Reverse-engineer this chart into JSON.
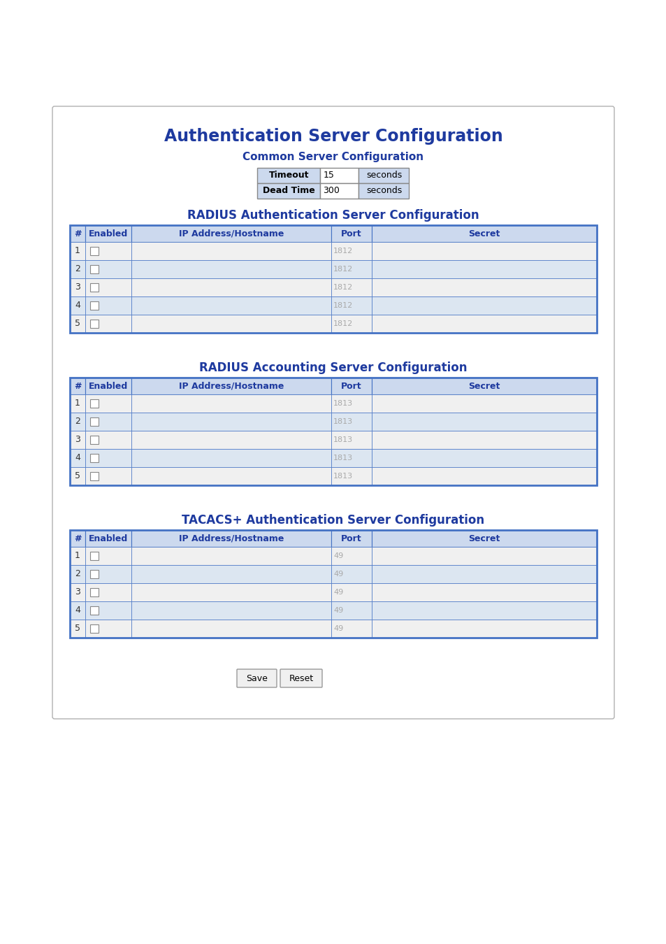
{
  "title": "Authentication Server Configuration",
  "subtitle_common": "Common Server Configuration",
  "timeout_label": "Timeout",
  "timeout_value": "15",
  "deadtime_label": "Dead Time",
  "deadtime_value": "300",
  "seconds": "seconds",
  "section_radius_auth": "RADIUS Authentication Server Configuration",
  "section_radius_acct": "RADIUS Accounting Server Configuration",
  "section_tacacs": "TACACS+ Authentication Server Configuration",
  "table_headers": [
    "#",
    "Enabled",
    "IP Address/Hostname",
    "Port",
    "Secret"
  ],
  "radius_auth_port": "1812",
  "radius_acct_port": "1813",
  "tacacs_port": "49",
  "num_rows": 5,
  "bg_color": "#ffffff",
  "panel_bg": "#ffffff",
  "panel_border": "#b0b0b0",
  "title_color": "#1e3a9f",
  "subtitle_color": "#1e3a9f",
  "section_title_color": "#1e3a9f",
  "table_header_bg": "#ccd9ee",
  "table_header_color": "#1e3a9f",
  "row_odd_bg": "#f0f0f0",
  "row_even_bg": "#dce6f1",
  "table_border_color": "#4472c4",
  "port_text_color": "#aaaaaa",
  "checkbox_color": "#ffffff",
  "checkbox_border": "#888888",
  "button_bg": "#f0f0f0",
  "button_border": "#999999",
  "button_text": "#000000",
  "config_label_bg": "#ccd9ee",
  "config_value_bg": "#ffffff",
  "config_unit_bg": "#ccd9ee"
}
